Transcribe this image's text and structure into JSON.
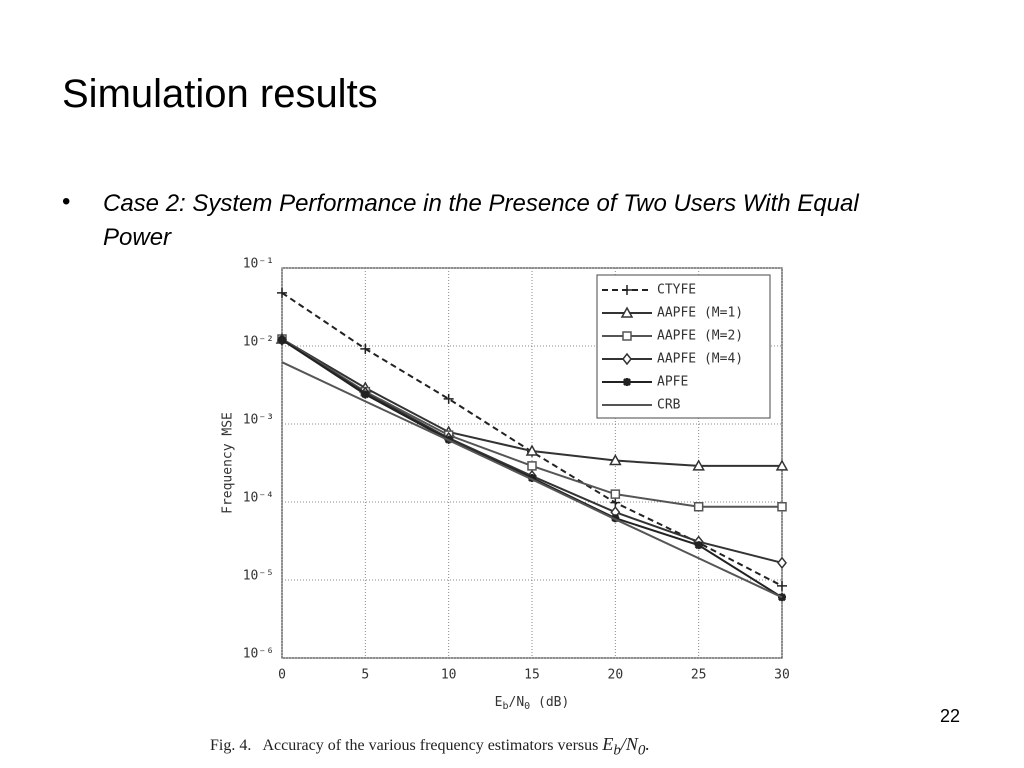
{
  "slide": {
    "title": "Simulation results",
    "bullet": "Case 2: System Performance in the Presence of Two Users With Equal Power",
    "page_number": "22",
    "caption": {
      "label": "Fig. 4.",
      "text": "Accuracy of the various frequency estimators versus",
      "math": [
        "E",
        "b",
        "/",
        "N",
        "0",
        "."
      ]
    }
  },
  "chart_data": {
    "type": "line",
    "x_label": [
      "E",
      "b",
      "/N",
      "0",
      " (dB)"
    ],
    "y_label": "Frequency MSE",
    "x": [
      0,
      5,
      10,
      15,
      20,
      25,
      30
    ],
    "xlim": [
      0,
      30
    ],
    "xticks": [
      0,
      5,
      10,
      15,
      20,
      25,
      30
    ],
    "ylim": [
      1e-06,
      0.1
    ],
    "log_y": true,
    "grid": true,
    "legend": "top-right",
    "yticks": [
      {
        "value": 1e-06,
        "label": "10⁻⁶"
      },
      {
        "value": 1e-05,
        "label": "10⁻⁵"
      },
      {
        "value": 0.0001,
        "label": "10⁻⁴"
      },
      {
        "value": 0.001,
        "label": "10⁻³"
      },
      {
        "value": 0.01,
        "label": "10⁻²"
      },
      {
        "value": 0.1,
        "label": "10⁻¹"
      }
    ],
    "series": [
      {
        "name": "CTYFE",
        "color": "#222222",
        "dash": "6,4",
        "marker": "plus",
        "values": [
          0.048,
          0.0092,
          0.0021,
          0.00044,
          9.8e-05,
          3e-05,
          8.4e-06
        ]
      },
      {
        "name": "AAPFE (M=1)",
        "color": "#333333",
        "marker": "triangle",
        "values": [
          0.0123,
          0.0029,
          0.00079,
          0.00045,
          0.00034,
          0.00029,
          0.00029
        ]
      },
      {
        "name": "AAPFE (M=2)",
        "color": "#555555",
        "marker": "square",
        "values": [
          0.0123,
          0.0026,
          0.00072,
          0.00029,
          0.000126,
          8.7e-05,
          8.7e-05
        ]
      },
      {
        "name": "AAPFE (M=4)",
        "color": "#333333",
        "marker": "diamond",
        "values": [
          0.012,
          0.0025,
          0.00066,
          0.000215,
          7.4e-05,
          3.1e-05,
          1.66e-05
        ]
      },
      {
        "name": "APFE",
        "color": "#222222",
        "marker": "star",
        "values": [
          0.012,
          0.0024,
          0.00063,
          0.000203,
          6.2e-05,
          2.8e-05,
          6e-06
        ]
      },
      {
        "name": "CRB",
        "color": "#555555",
        "marker": "none",
        "values": [
          0.0062,
          0.00195,
          0.00062,
          0.000195,
          6e-05,
          1.9e-05,
          6e-06
        ]
      }
    ]
  }
}
